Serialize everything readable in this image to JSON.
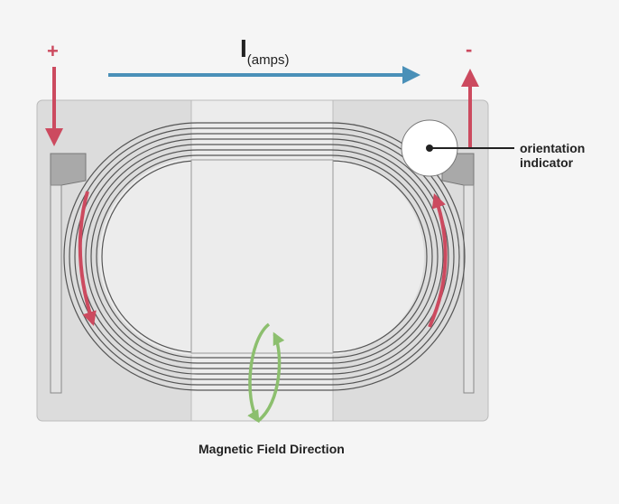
{
  "labels": {
    "positive_terminal": "+",
    "negative_terminal": "-",
    "current_symbol": "I",
    "current_unit": "(amps)",
    "orientation_line1": "orientation",
    "orientation_line2": "indicator",
    "magnetic_field": "Magnetic Field Direction"
  },
  "colors": {
    "current_arrow": "#4a90b8",
    "terminal_arrow": "#cc4a5f",
    "field_arrow": "#8cbf6e",
    "body": "#dddddd",
    "coil": "#555555"
  },
  "icons": {
    "terminal_in": "arrow-down-icon",
    "terminal_out": "arrow-up-icon",
    "current_direction": "arrow-right-icon",
    "field_loop": "circular-arrow-icon"
  }
}
